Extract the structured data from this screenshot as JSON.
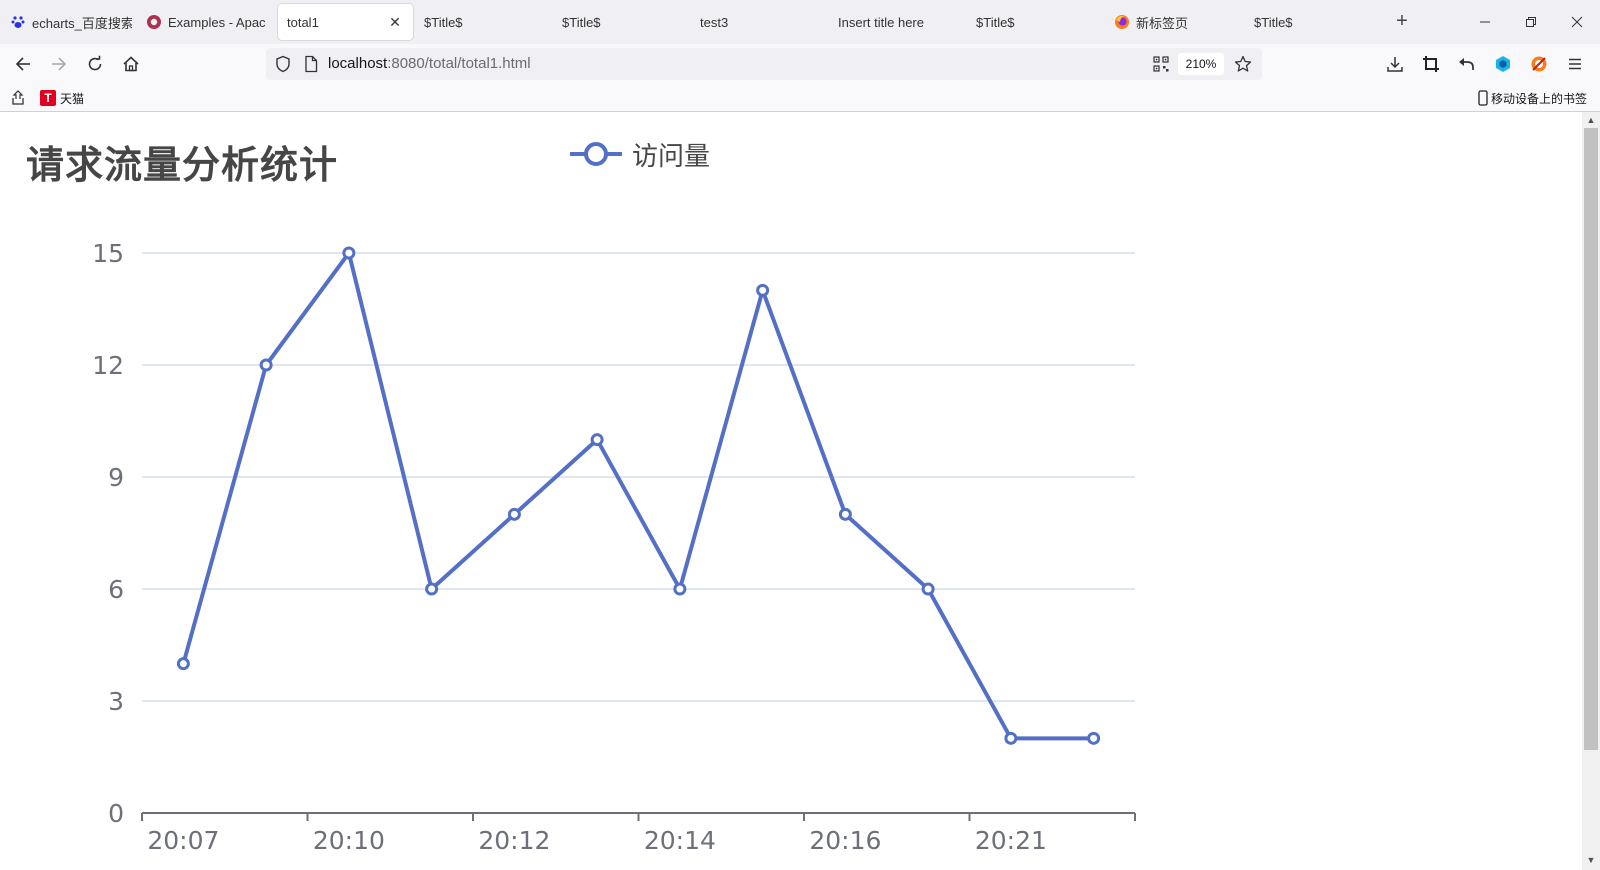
{
  "browser": {
    "tabs": [
      {
        "label": "echarts_百度搜索",
        "icon": "baidu-paw-icon"
      },
      {
        "label": "Examples - Apac",
        "icon": "apache-echarts-icon"
      },
      {
        "label": "total1",
        "icon": "",
        "active": true
      },
      {
        "label": "$Title$",
        "icon": ""
      },
      {
        "label": "$Title$",
        "icon": ""
      },
      {
        "label": "test3",
        "icon": ""
      },
      {
        "label": "Insert title here",
        "icon": ""
      },
      {
        "label": "$Title$",
        "icon": ""
      },
      {
        "label": "新标签页",
        "icon": "firefox-icon"
      },
      {
        "label": "$Title$",
        "icon": ""
      }
    ],
    "url": {
      "host": "localhost",
      "rest": ":8080/total/total1.html"
    },
    "zoom": "210%",
    "bookmarks": {
      "left_item": "天猫",
      "left_icon_letter": "T",
      "right_item": "移动设备上的书签"
    }
  },
  "colors": {
    "series": "#5470c6",
    "grid": "#e0e6f1",
    "axis": "#6e7079",
    "title": "#464646"
  },
  "chart_data": {
    "type": "line",
    "title": "请求流量分析统计",
    "legend": [
      "访问量"
    ],
    "x": [
      "20:07",
      "",
      "20:10",
      "",
      "20:12",
      "",
      "20:14",
      "",
      "20:16",
      "",
      "20:21",
      ""
    ],
    "xtick_labels": [
      "20:07",
      "20:10",
      "20:12",
      "20:14",
      "20:16",
      "20:21"
    ],
    "series": [
      {
        "name": "访问量",
        "values": [
          4,
          12,
          15,
          6,
          8,
          10,
          6,
          14,
          8,
          6,
          2,
          2
        ]
      }
    ],
    "yticks": [
      0,
      3,
      6,
      9,
      12,
      15
    ],
    "ylim": [
      0,
      15
    ],
    "grid": true,
    "legend_position": "top-center"
  }
}
